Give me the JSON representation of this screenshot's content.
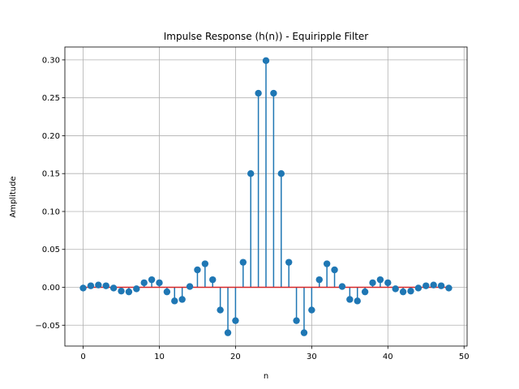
{
  "chart_data": {
    "type": "stem",
    "title": "Impulse Response (h(n)) - Equiripple Filter",
    "xlabel": "n",
    "ylabel": "Amplitude",
    "xlim": [
      -2.4,
      50.4
    ],
    "ylim": [
      -0.0775,
      0.317
    ],
    "xticks": [
      0,
      10,
      20,
      30,
      40,
      50
    ],
    "yticks": [
      -0.05,
      0.0,
      0.05,
      0.1,
      0.15,
      0.2,
      0.25,
      0.3
    ],
    "xtick_labels": [
      "0",
      "10",
      "20",
      "30",
      "40",
      "50"
    ],
    "ytick_labels": [
      "−0.05",
      "0.00",
      "0.05",
      "0.10",
      "0.15",
      "0.20",
      "0.25",
      "0.30"
    ],
    "grid": true,
    "baseline": 0,
    "colors": {
      "stem": "#1f77b4",
      "marker": "#1f77b4",
      "baseline": "#d62728",
      "grid": "#b0b0b0"
    },
    "x": [
      0,
      1,
      2,
      3,
      4,
      5,
      6,
      7,
      8,
      9,
      10,
      11,
      12,
      13,
      14,
      15,
      16,
      17,
      18,
      19,
      20,
      21,
      22,
      23,
      24,
      25,
      26,
      27,
      28,
      29,
      30,
      31,
      32,
      33,
      34,
      35,
      36,
      37,
      38,
      39,
      40,
      41,
      42,
      43,
      44,
      45,
      46,
      47,
      48
    ],
    "values": [
      -0.001,
      0.002,
      0.003,
      0.002,
      -0.001,
      -0.005,
      -0.006,
      -0.002,
      0.006,
      0.01,
      0.006,
      -0.006,
      -0.018,
      -0.016,
      0.001,
      0.023,
      0.031,
      0.01,
      -0.03,
      -0.06,
      -0.044,
      0.033,
      0.15,
      0.256,
      0.299,
      0.256,
      0.15,
      0.033,
      -0.044,
      -0.06,
      -0.03,
      0.01,
      0.031,
      0.023,
      0.001,
      -0.016,
      -0.018,
      -0.006,
      0.006,
      0.01,
      0.006,
      -0.002,
      -0.006,
      -0.005,
      -0.001,
      0.002,
      0.003,
      0.002,
      -0.001
    ]
  }
}
